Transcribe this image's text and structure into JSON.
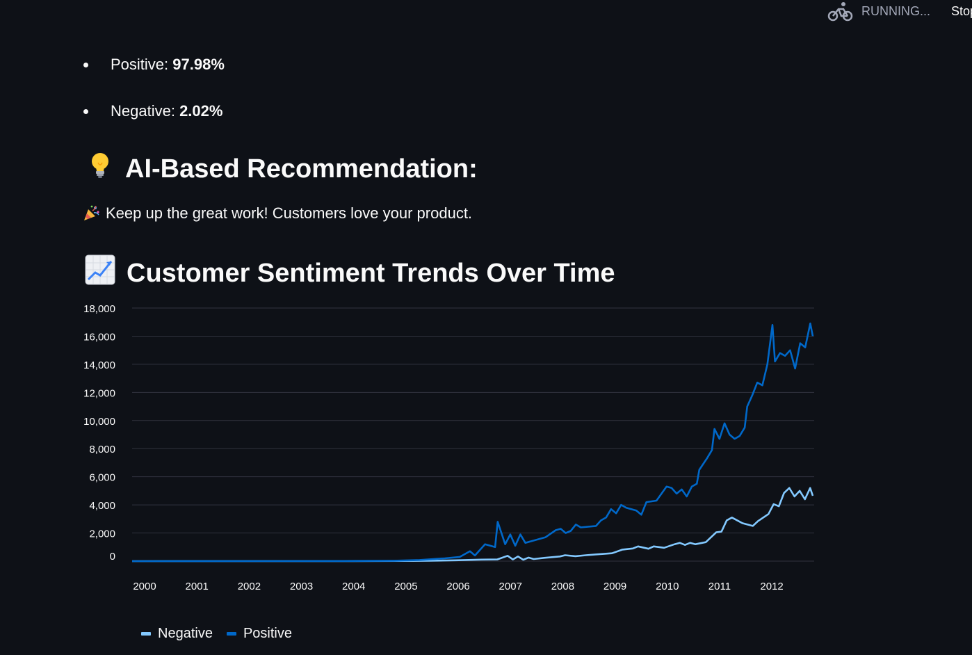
{
  "status": {
    "running_label": "RUNNING...",
    "stop_label": "Stop"
  },
  "summary": [
    {
      "label": "Positive: ",
      "value": "97.98%"
    },
    {
      "label": "Negative: ",
      "value": "2.02%"
    }
  ],
  "recommendation": {
    "heading_icon": "lightbulb-icon",
    "heading": "AI-Based Recommendation:",
    "message_icon": "party-popper-icon",
    "message": "Keep up the great work! Customers love your product."
  },
  "trends": {
    "heading_icon": "chart-increasing-icon",
    "heading": "Customer Sentiment Trends Over Time"
  },
  "colors": {
    "background": "#0e1117",
    "negative": "#83c9ff",
    "positive": "#0068c9",
    "grid": "#31333f"
  },
  "chart_data": {
    "type": "line",
    "x_ticks": [
      "2000",
      "2001",
      "2002",
      "2003",
      "2004",
      "2005",
      "2006",
      "2007",
      "2008",
      "2009",
      "2010",
      "2011",
      "2012"
    ],
    "y_ticks": [
      "0",
      "2,000",
      "4,000",
      "6,000",
      "8,000",
      "10,000",
      "12,000",
      "14,000",
      "16,000",
      "18,000"
    ],
    "ylim": [
      0,
      18000
    ],
    "xlim": [
      1999.8,
      2012.85
    ],
    "grid": true,
    "legend_position": "bottom-left",
    "series": [
      {
        "name": "Negative",
        "color": "#83c9ff",
        "points": [
          [
            1999.8,
            0
          ],
          [
            2004.0,
            5
          ],
          [
            2005.0,
            15
          ],
          [
            2005.5,
            25
          ],
          [
            2006.0,
            60
          ],
          [
            2006.5,
            110
          ],
          [
            2006.8,
            120
          ],
          [
            2007.0,
            380
          ],
          [
            2007.1,
            120
          ],
          [
            2007.2,
            330
          ],
          [
            2007.3,
            100
          ],
          [
            2007.4,
            250
          ],
          [
            2007.5,
            150
          ],
          [
            2007.7,
            230
          ],
          [
            2008.0,
            330
          ],
          [
            2008.1,
            420
          ],
          [
            2008.3,
            350
          ],
          [
            2008.5,
            420
          ],
          [
            2008.7,
            480
          ],
          [
            2009.0,
            560
          ],
          [
            2009.2,
            820
          ],
          [
            2009.4,
            900
          ],
          [
            2009.5,
            1050
          ],
          [
            2009.7,
            880
          ],
          [
            2009.8,
            1050
          ],
          [
            2010.0,
            950
          ],
          [
            2010.2,
            1200
          ],
          [
            2010.3,
            1300
          ],
          [
            2010.4,
            1150
          ],
          [
            2010.5,
            1300
          ],
          [
            2010.6,
            1200
          ],
          [
            2010.8,
            1350
          ],
          [
            2010.9,
            1700
          ],
          [
            2011.0,
            2050
          ],
          [
            2011.1,
            2100
          ],
          [
            2011.2,
            2900
          ],
          [
            2011.3,
            3100
          ],
          [
            2011.5,
            2700
          ],
          [
            2011.7,
            2500
          ],
          [
            2011.8,
            2850
          ],
          [
            2012.0,
            3350
          ],
          [
            2012.1,
            4050
          ],
          [
            2012.2,
            3900
          ],
          [
            2012.3,
            4850
          ],
          [
            2012.4,
            5200
          ],
          [
            2012.5,
            4600
          ],
          [
            2012.6,
            5000
          ],
          [
            2012.7,
            4400
          ],
          [
            2012.8,
            5200
          ],
          [
            2012.85,
            4650
          ]
        ]
      },
      {
        "name": "Positive",
        "color": "#0068c9",
        "points": [
          [
            1999.8,
            0
          ],
          [
            2004.0,
            10
          ],
          [
            2005.0,
            30
          ],
          [
            2005.5,
            80
          ],
          [
            2006.0,
            200
          ],
          [
            2006.3,
            300
          ],
          [
            2006.5,
            700
          ],
          [
            2006.6,
            400
          ],
          [
            2006.8,
            1200
          ],
          [
            2007.0,
            1000
          ],
          [
            2007.05,
            2800
          ],
          [
            2007.2,
            1200
          ],
          [
            2007.3,
            1900
          ],
          [
            2007.4,
            1100
          ],
          [
            2007.5,
            1900
          ],
          [
            2007.6,
            1300
          ],
          [
            2008.0,
            1700
          ],
          [
            2008.2,
            2200
          ],
          [
            2008.3,
            2300
          ],
          [
            2008.4,
            2000
          ],
          [
            2008.5,
            2150
          ],
          [
            2008.6,
            2600
          ],
          [
            2008.7,
            2400
          ],
          [
            2009.0,
            2500
          ],
          [
            2009.1,
            2900
          ],
          [
            2009.2,
            3100
          ],
          [
            2009.3,
            3700
          ],
          [
            2009.4,
            3400
          ],
          [
            2009.5,
            4000
          ],
          [
            2009.6,
            3800
          ],
          [
            2009.8,
            3600
          ],
          [
            2009.9,
            3300
          ],
          [
            2010.0,
            4200
          ],
          [
            2010.2,
            4300
          ],
          [
            2010.4,
            5300
          ],
          [
            2010.5,
            5200
          ],
          [
            2010.6,
            4800
          ],
          [
            2010.7,
            5100
          ],
          [
            2010.8,
            4600
          ],
          [
            2010.9,
            5300
          ],
          [
            2011.0,
            5500
          ],
          [
            2011.05,
            6500
          ],
          [
            2011.2,
            7300
          ],
          [
            2011.3,
            7900
          ],
          [
            2011.35,
            9400
          ],
          [
            2011.45,
            8700
          ],
          [
            2011.55,
            9800
          ],
          [
            2011.65,
            9000
          ],
          [
            2011.75,
            8700
          ],
          [
            2011.85,
            8900
          ],
          [
            2011.95,
            9500
          ],
          [
            2012.0,
            11000
          ],
          [
            2012.1,
            11800
          ],
          [
            2012.2,
            12700
          ],
          [
            2012.3,
            12500
          ],
          [
            2012.4,
            14000
          ],
          [
            2012.5,
            16800
          ],
          [
            2012.55,
            14200
          ],
          [
            2012.65,
            14800
          ],
          [
            2012.75,
            14600
          ],
          [
            2012.85,
            15000
          ],
          [
            2012.95,
            13700
          ],
          [
            2013.05,
            15500
          ],
          [
            2013.15,
            15200
          ],
          [
            2013.25,
            16900
          ],
          [
            2013.3,
            16000
          ]
        ]
      }
    ]
  }
}
